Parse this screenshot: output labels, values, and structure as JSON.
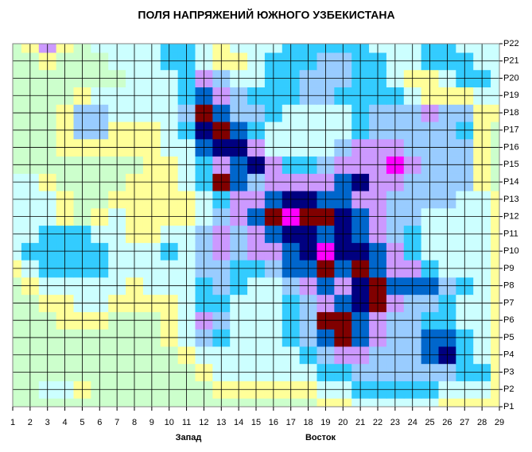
{
  "chart_data": {
    "type": "contour",
    "title": "ПОЛЯ НАПРЯЖЕНИЙ ЮЖНОГО УЗБЕКИСТАНА",
    "annotations": [
      "Запад",
      "Восток"
    ],
    "x": [
      1,
      2,
      3,
      4,
      5,
      6,
      7,
      8,
      9,
      10,
      11,
      12,
      13,
      14,
      15,
      16,
      17,
      18,
      19,
      20,
      21,
      22,
      23,
      24,
      25,
      26,
      27,
      28,
      29
    ],
    "y": [
      "P1",
      "P2",
      "P3",
      "P4",
      "P5",
      "P6",
      "P7",
      "P8",
      "P9",
      "P10",
      "P11",
      "P12",
      "P13",
      "P14",
      "P15",
      "P16",
      "P17",
      "P18",
      "P19",
      "P20",
      "P21",
      "P22"
    ],
    "grid": true,
    "level_colors": [
      "#ccffcc",
      "#ffff99",
      "#ccffff",
      "#33ccff",
      "#99ccff",
      "#cc99ff",
      "#0066cc",
      "#000080",
      "#800000",
      "#ff00ff"
    ],
    "z": [
      [
        0,
        0,
        0,
        0,
        0,
        0,
        0,
        0,
        0,
        0,
        0,
        0,
        0,
        0,
        0,
        0,
        0,
        0,
        1,
        1,
        2,
        2,
        2,
        2,
        2,
        1,
        1,
        1,
        1
      ],
      [
        0,
        0,
        2,
        2,
        1,
        0,
        0,
        0,
        0,
        0,
        0,
        0,
        1,
        1,
        1,
        1,
        1,
        1,
        2,
        2,
        3,
        3,
        3,
        3,
        3,
        2,
        2,
        2,
        1
      ],
      [
        0,
        0,
        0,
        0,
        0,
        0,
        0,
        0,
        0,
        0,
        0,
        1,
        2,
        2,
        2,
        2,
        2,
        2,
        3,
        3,
        4,
        4,
        4,
        4,
        4,
        4,
        3,
        3,
        1
      ],
      [
        0,
        0,
        0,
        0,
        0,
        0,
        0,
        0,
        0,
        0,
        1,
        2,
        2,
        2,
        2,
        2,
        2,
        3,
        4,
        5,
        5,
        4,
        4,
        4,
        6,
        7,
        3,
        2,
        1
      ],
      [
        0,
        0,
        0,
        0,
        0,
        0,
        0,
        0,
        0,
        1,
        2,
        4,
        3,
        2,
        2,
        2,
        3,
        4,
        6,
        8,
        6,
        5,
        4,
        4,
        6,
        6,
        3,
        2,
        1
      ],
      [
        0,
        0,
        0,
        1,
        1,
        1,
        0,
        0,
        0,
        1,
        2,
        5,
        4,
        2,
        2,
        2,
        3,
        4,
        8,
        8,
        6,
        5,
        4,
        4,
        3,
        3,
        2,
        2,
        1
      ],
      [
        0,
        0,
        1,
        1,
        2,
        2,
        1,
        1,
        1,
        1,
        2,
        3,
        3,
        2,
        2,
        2,
        3,
        4,
        5,
        6,
        7,
        8,
        5,
        4,
        4,
        3,
        2,
        2,
        1
      ],
      [
        0,
        1,
        2,
        2,
        2,
        2,
        2,
        1,
        2,
        2,
        2,
        3,
        4,
        3,
        2,
        2,
        4,
        5,
        6,
        5,
        7,
        8,
        6,
        6,
        6,
        4,
        3,
        2,
        1
      ],
      [
        1,
        2,
        3,
        3,
        3,
        3,
        2,
        2,
        2,
        2,
        2,
        4,
        4,
        3,
        3,
        4,
        6,
        6,
        8,
        6,
        8,
        6,
        5,
        5,
        3,
        2,
        2,
        2,
        1
      ],
      [
        2,
        3,
        3,
        3,
        3,
        3,
        2,
        2,
        2,
        3,
        2,
        4,
        5,
        4,
        5,
        5,
        6,
        7,
        9,
        7,
        7,
        6,
        5,
        3,
        2,
        2,
        2,
        2,
        1
      ],
      [
        2,
        2,
        3,
        3,
        3,
        2,
        2,
        1,
        1,
        2,
        2,
        4,
        5,
        4,
        5,
        6,
        7,
        7,
        6,
        7,
        6,
        5,
        4,
        3,
        2,
        2,
        2,
        2,
        1
      ],
      [
        2,
        2,
        2,
        1,
        0,
        1,
        2,
        1,
        1,
        1,
        1,
        2,
        4,
        5,
        6,
        8,
        9,
        8,
        8,
        7,
        6,
        5,
        4,
        4,
        2,
        2,
        2,
        2,
        1
      ],
      [
        2,
        2,
        2,
        1,
        0,
        0,
        1,
        1,
        1,
        1,
        1,
        2,
        3,
        5,
        5,
        6,
        7,
        7,
        6,
        6,
        5,
        5,
        4,
        4,
        4,
        4,
        2,
        2,
        1
      ],
      [
        2,
        2,
        1,
        0,
        0,
        0,
        0,
        1,
        1,
        1,
        2,
        3,
        8,
        6,
        4,
        5,
        5,
        5,
        5,
        6,
        7,
        5,
        5,
        4,
        4,
        4,
        4,
        1,
        0
      ],
      [
        0,
        0,
        0,
        0,
        0,
        0,
        0,
        0,
        1,
        1,
        2,
        3,
        5,
        6,
        7,
        5,
        3,
        3,
        4,
        5,
        5,
        5,
        9,
        5,
        4,
        4,
        4,
        1,
        0
      ],
      [
        0,
        0,
        0,
        1,
        1,
        1,
        1,
        1,
        1,
        2,
        2,
        6,
        7,
        7,
        5,
        2,
        2,
        2,
        2,
        4,
        5,
        5,
        5,
        4,
        4,
        4,
        4,
        1,
        0
      ],
      [
        0,
        0,
        0,
        1,
        4,
        4,
        1,
        1,
        1,
        2,
        3,
        7,
        8,
        6,
        3,
        2,
        2,
        2,
        2,
        2,
        3,
        4,
        4,
        4,
        4,
        4,
        3,
        1,
        0
      ],
      [
        0,
        0,
        0,
        1,
        4,
        4,
        2,
        2,
        2,
        2,
        4,
        8,
        6,
        4,
        4,
        3,
        2,
        2,
        2,
        2,
        3,
        4,
        4,
        4,
        5,
        4,
        4,
        1,
        1
      ],
      [
        0,
        0,
        0,
        0,
        1,
        2,
        2,
        2,
        2,
        2,
        3,
        6,
        5,
        4,
        3,
        3,
        3,
        4,
        4,
        3,
        3,
        3,
        3,
        2,
        1,
        1,
        1,
        2,
        2
      ],
      [
        0,
        0,
        0,
        0,
        0,
        0,
        0,
        2,
        2,
        2,
        3,
        5,
        4,
        2,
        2,
        3,
        3,
        4,
        4,
        4,
        3,
        3,
        2,
        1,
        1,
        2,
        3,
        3,
        2
      ],
      [
        0,
        0,
        1,
        0,
        0,
        0,
        2,
        2,
        2,
        3,
        3,
        2,
        1,
        1,
        2,
        3,
        3,
        3,
        4,
        4,
        3,
        3,
        2,
        2,
        3,
        3,
        3,
        2,
        2
      ],
      [
        0,
        1,
        5,
        1,
        0,
        2,
        2,
        2,
        2,
        3,
        3,
        2,
        1,
        2,
        2,
        2,
        3,
        3,
        3,
        3,
        3,
        2,
        2,
        2,
        3,
        3,
        2,
        2,
        2
      ]
    ]
  }
}
